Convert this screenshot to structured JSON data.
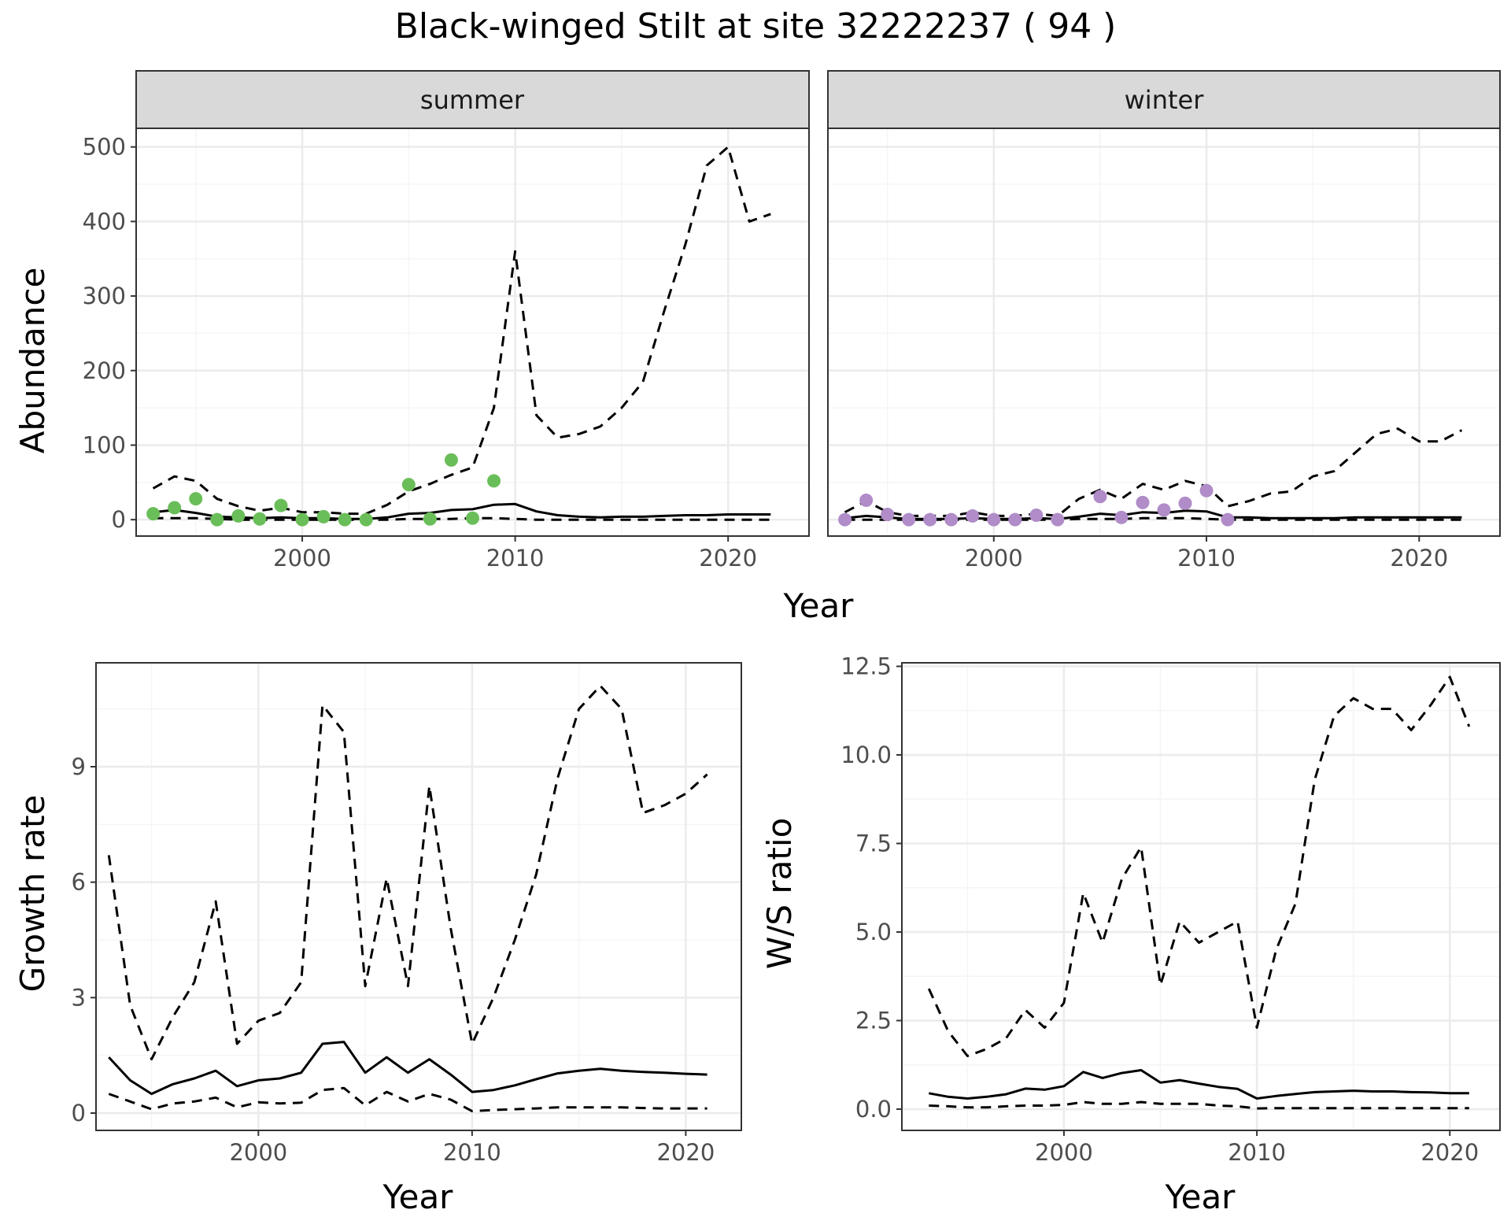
{
  "title": "Black-winged Stilt at site 32222237 ( 94 )",
  "colors": {
    "summer_points": "#6ABE59",
    "winter_points": "#B08CC8",
    "strip_fill": "#D9D9D9",
    "grid_major": "#EBEBEB",
    "grid_minor": "#F5F5F5",
    "line": "#000000"
  },
  "chart_data": [
    {
      "type": "line",
      "panel": "summer",
      "strip_label": "summer",
      "xlabel": "Year",
      "ylabel": "Abundance",
      "xlim": [
        1992.2,
        2023.8
      ],
      "ylim": [
        -22,
        525
      ],
      "x_ticks": [
        2000,
        2010,
        2020
      ],
      "y_ticks": [
        0,
        100,
        200,
        300,
        400,
        500
      ],
      "points": {
        "name": "observed",
        "x": [
          1993,
          1994,
          1995,
          1996,
          1997,
          1998,
          1999,
          2000,
          2001,
          2002,
          2003,
          2005,
          2006,
          2007,
          2008,
          2009
        ],
        "y": [
          8,
          16,
          28,
          0,
          5,
          1,
          19,
          0,
          4,
          0,
          0,
          47,
          1,
          80,
          2,
          52
        ]
      },
      "series": [
        {
          "style": "dashed",
          "x": [
            1993,
            1994,
            1995,
            1996,
            1997,
            1998,
            1999,
            2000,
            2001,
            2002,
            2003,
            2004,
            2005,
            2006,
            2007,
            2008,
            2009,
            2010,
            2011,
            2012,
            2013,
            2014,
            2015,
            2016,
            2017,
            2018,
            2019,
            2020,
            2021,
            2022
          ],
          "y": [
            42,
            58,
            52,
            28,
            18,
            12,
            16,
            10,
            10,
            8,
            8,
            20,
            38,
            48,
            60,
            70,
            150,
            360,
            140,
            110,
            115,
            125,
            150,
            185,
            280,
            370,
            475,
            500,
            400,
            410
          ]
        },
        {
          "style": "solid",
          "x": [
            1993,
            1994,
            1995,
            1996,
            1997,
            1998,
            1999,
            2000,
            2001,
            2002,
            2003,
            2004,
            2005,
            2006,
            2007,
            2008,
            2009,
            2010,
            2011,
            2012,
            2013,
            2014,
            2015,
            2016,
            2017,
            2018,
            2019,
            2020,
            2021,
            2022
          ],
          "y": [
            10,
            13,
            9,
            4,
            3,
            2,
            3,
            2,
            2,
            1,
            1,
            3,
            8,
            9,
            13,
            14,
            20,
            21,
            11,
            6,
            4,
            3,
            4,
            4,
            5,
            6,
            6,
            7,
            7,
            7
          ]
        },
        {
          "style": "dashed",
          "x": [
            1993,
            1994,
            1995,
            1996,
            1997,
            1998,
            1999,
            2000,
            2001,
            2002,
            2003,
            2004,
            2005,
            2006,
            2007,
            2008,
            2009,
            2010,
            2011,
            2012,
            2013,
            2014,
            2015,
            2016,
            2017,
            2018,
            2019,
            2020,
            2021,
            2022
          ],
          "y": [
            2,
            2,
            2,
            1,
            0,
            0,
            0,
            0,
            0,
            0,
            0,
            0,
            1,
            1,
            1,
            2,
            2,
            1,
            0,
            0,
            0,
            0,
            0,
            0,
            0,
            0,
            0,
            0,
            0,
            0
          ]
        }
      ]
    },
    {
      "type": "line",
      "panel": "winter",
      "strip_label": "winter",
      "xlabel": "Year",
      "ylabel": "Abundance",
      "xlim": [
        1992.2,
        2023.8
      ],
      "ylim": [
        -22,
        525
      ],
      "x_ticks": [
        2000,
        2010,
        2020
      ],
      "y_ticks": [
        0,
        100,
        200,
        300,
        400,
        500
      ],
      "points": {
        "name": "observed",
        "x": [
          1993,
          1994,
          1995,
          1996,
          1997,
          1998,
          1999,
          2000,
          2001,
          2002,
          2003,
          2005,
          2006,
          2007,
          2008,
          2009,
          2010,
          2011
        ],
        "y": [
          0,
          26,
          7,
          0,
          0,
          0,
          5,
          0,
          0,
          6,
          0,
          31,
          3,
          23,
          13,
          22,
          39,
          0
        ]
      },
      "series": [
        {
          "style": "dashed",
          "x": [
            1993,
            1994,
            1995,
            1996,
            1997,
            1998,
            1999,
            2000,
            2001,
            2002,
            2003,
            2004,
            2005,
            2006,
            2007,
            2008,
            2009,
            2010,
            2011,
            2012,
            2013,
            2014,
            2015,
            2016,
            2017,
            2018,
            2019,
            2020,
            2021,
            2022
          ],
          "y": [
            10,
            25,
            10,
            5,
            5,
            5,
            10,
            5,
            5,
            8,
            5,
            28,
            40,
            28,
            48,
            40,
            52,
            45,
            18,
            25,
            35,
            38,
            58,
            65,
            90,
            115,
            122,
            105,
            105,
            120
          ]
        },
        {
          "style": "solid",
          "x": [
            1993,
            1994,
            1995,
            1996,
            1997,
            1998,
            1999,
            2000,
            2001,
            2002,
            2003,
            2004,
            2005,
            2006,
            2007,
            2008,
            2009,
            2010,
            2011,
            2012,
            2013,
            2014,
            2015,
            2016,
            2017,
            2018,
            2019,
            2020,
            2021,
            2022
          ],
          "y": [
            2,
            5,
            3,
            1,
            1,
            1,
            2,
            1,
            1,
            2,
            1,
            4,
            8,
            6,
            10,
            9,
            12,
            11,
            3,
            3,
            2,
            2,
            2,
            2,
            3,
            3,
            3,
            3,
            3,
            3
          ]
        },
        {
          "style": "dashed",
          "x": [
            1993,
            1994,
            1995,
            1996,
            1997,
            1998,
            1999,
            2000,
            2001,
            2002,
            2003,
            2004,
            2005,
            2006,
            2007,
            2008,
            2009,
            2010,
            2011,
            2012,
            2013,
            2014,
            2015,
            2016,
            2017,
            2018,
            2019,
            2020,
            2021,
            2022
          ],
          "y": [
            0,
            0,
            0,
            0,
            0,
            0,
            0,
            0,
            0,
            0,
            0,
            1,
            1,
            1,
            2,
            2,
            2,
            1,
            0,
            0,
            0,
            0,
            0,
            0,
            0,
            0,
            0,
            0,
            0,
            0
          ]
        }
      ]
    },
    {
      "type": "line",
      "panel": "growth",
      "xlabel": "Year",
      "ylabel": "Growth rate",
      "xlim": [
        1992.4,
        2022.6
      ],
      "ylim": [
        -0.45,
        11.7
      ],
      "x_ticks": [
        2000,
        2010,
        2020
      ],
      "y_ticks": [
        0,
        3,
        6,
        9
      ],
      "series": [
        {
          "style": "dashed",
          "x": [
            1993,
            1994,
            1995,
            1996,
            1997,
            1998,
            1999,
            2000,
            2001,
            2002,
            2003,
            2004,
            2005,
            2006,
            2007,
            2008,
            2009,
            2010,
            2011,
            2012,
            2013,
            2014,
            2015,
            2016,
            2017,
            2018,
            2019,
            2020,
            2021
          ],
          "y": [
            6.7,
            2.8,
            1.4,
            2.5,
            3.4,
            5.5,
            1.8,
            2.4,
            2.6,
            3.4,
            10.6,
            9.9,
            3.3,
            6.1,
            3.3,
            8.5,
            4.8,
            1.8,
            3.0,
            4.5,
            6.2,
            8.7,
            10.5,
            11.1,
            10.5,
            7.8,
            8.0,
            8.3,
            8.8
          ]
        },
        {
          "style": "solid",
          "x": [
            1993,
            1994,
            1995,
            1996,
            1997,
            1998,
            1999,
            2000,
            2001,
            2002,
            2003,
            2004,
            2005,
            2006,
            2007,
            2008,
            2009,
            2010,
            2011,
            2012,
            2013,
            2014,
            2015,
            2016,
            2017,
            2018,
            2019,
            2020,
            2021
          ],
          "y": [
            1.45,
            0.85,
            0.5,
            0.75,
            0.9,
            1.1,
            0.7,
            0.85,
            0.9,
            1.05,
            1.8,
            1.85,
            1.05,
            1.45,
            1.05,
            1.4,
            1.0,
            0.55,
            0.6,
            0.72,
            0.88,
            1.03,
            1.1,
            1.15,
            1.1,
            1.07,
            1.05,
            1.02,
            1.0
          ]
        },
        {
          "style": "dashed",
          "x": [
            1993,
            1994,
            1995,
            1996,
            1997,
            1998,
            1999,
            2000,
            2001,
            2002,
            2003,
            2004,
            2005,
            2006,
            2007,
            2008,
            2009,
            2010,
            2011,
            2012,
            2013,
            2014,
            2015,
            2016,
            2017,
            2018,
            2019,
            2020,
            2021
          ],
          "y": [
            0.5,
            0.3,
            0.1,
            0.25,
            0.3,
            0.4,
            0.15,
            0.28,
            0.25,
            0.27,
            0.6,
            0.65,
            0.2,
            0.55,
            0.3,
            0.5,
            0.35,
            0.05,
            0.08,
            0.1,
            0.12,
            0.15,
            0.15,
            0.15,
            0.15,
            0.13,
            0.12,
            0.12,
            0.12
          ]
        }
      ]
    },
    {
      "type": "line",
      "panel": "ratio",
      "xlabel": "Year",
      "ylabel": "W/S ratio",
      "xlim": [
        1991.6,
        2022.6
      ],
      "ylim": [
        -0.6,
        12.6
      ],
      "x_ticks": [
        2000,
        2010,
        2020
      ],
      "y_ticks": [
        0.0,
        2.5,
        5.0,
        7.5,
        10.0,
        12.5
      ],
      "y_tick_labels": [
        "0.0",
        "2.5",
        "5.0",
        "7.5",
        "10.0",
        "12.5"
      ],
      "series": [
        {
          "style": "dashed",
          "x": [
            1993,
            1994,
            1995,
            1996,
            1997,
            1998,
            1999,
            2000,
            2001,
            2002,
            2003,
            2004,
            2005,
            2006,
            2007,
            2008,
            2009,
            2010,
            2011,
            2012,
            2013,
            2014,
            2015,
            2016,
            2017,
            2018,
            2019,
            2020,
            2021
          ],
          "y": [
            3.4,
            2.2,
            1.5,
            1.7,
            2.0,
            2.8,
            2.3,
            3.0,
            6.1,
            4.7,
            6.5,
            7.4,
            3.5,
            5.3,
            4.7,
            5.0,
            5.3,
            2.3,
            4.5,
            5.8,
            9.3,
            11.1,
            11.6,
            11.3,
            11.3,
            10.7,
            11.4,
            12.2,
            10.8
          ]
        },
        {
          "style": "solid",
          "x": [
            1993,
            1994,
            1995,
            1996,
            1997,
            1998,
            1999,
            2000,
            2001,
            2002,
            2003,
            2004,
            2005,
            2006,
            2007,
            2008,
            2009,
            2010,
            2011,
            2012,
            2013,
            2014,
            2015,
            2016,
            2017,
            2018,
            2019,
            2020,
            2021
          ],
          "y": [
            0.45,
            0.35,
            0.3,
            0.35,
            0.42,
            0.58,
            0.55,
            0.65,
            1.05,
            0.88,
            1.02,
            1.1,
            0.75,
            0.82,
            0.72,
            0.63,
            0.57,
            0.3,
            0.37,
            0.43,
            0.48,
            0.5,
            0.52,
            0.5,
            0.5,
            0.48,
            0.47,
            0.45,
            0.45
          ]
        },
        {
          "style": "dashed",
          "x": [
            1993,
            1994,
            1995,
            1996,
            1997,
            1998,
            1999,
            2000,
            2001,
            2002,
            2003,
            2004,
            2005,
            2006,
            2007,
            2008,
            2009,
            2010,
            2011,
            2012,
            2013,
            2014,
            2015,
            2016,
            2017,
            2018,
            2019,
            2020,
            2021
          ],
          "y": [
            0.1,
            0.08,
            0.05,
            0.05,
            0.08,
            0.1,
            0.1,
            0.12,
            0.2,
            0.15,
            0.15,
            0.2,
            0.15,
            0.15,
            0.15,
            0.1,
            0.08,
            0.02,
            0.03,
            0.03,
            0.03,
            0.03,
            0.03,
            0.03,
            0.03,
            0.03,
            0.03,
            0.03,
            0.03
          ]
        }
      ]
    }
  ],
  "shared": {
    "top_xlabel": "Year"
  }
}
